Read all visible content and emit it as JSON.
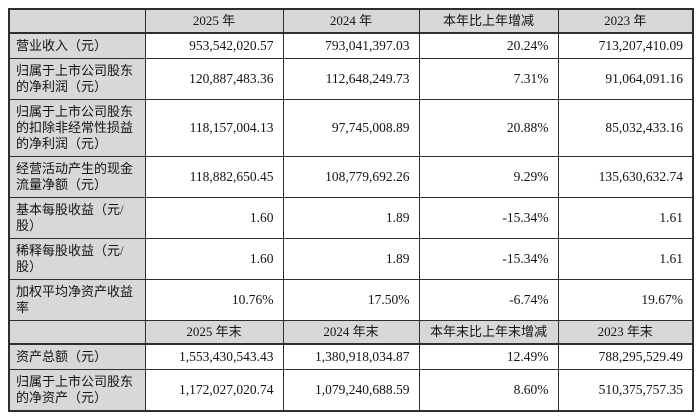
{
  "colors": {
    "header_bg": "#d8d8d8",
    "border": "#2e2e2e",
    "cell_bg": "#ffffff",
    "text": "#141414"
  },
  "table": {
    "sections": [
      {
        "header": {
          "corner": "",
          "cols": [
            "2025 年",
            "2024 年",
            "本年比上年增减",
            "2023 年"
          ]
        },
        "rows": [
          {
            "label": "营业收入（元）",
            "values": [
              "953,542,020.57",
              "793,041,397.03",
              "20.24%",
              "713,207,410.09"
            ]
          },
          {
            "label": "归属于上市公司股东的净利润（元）",
            "values": [
              "120,887,483.36",
              "112,648,249.73",
              "7.31%",
              "91,064,091.16"
            ]
          },
          {
            "label": "归属于上市公司股东的扣除非经常性损益的净利润（元）",
            "values": [
              "118,157,004.13",
              "97,745,008.89",
              "20.88%",
              "85,032,433.16"
            ]
          },
          {
            "label": "经营活动产生的现金流量净额（元）",
            "values": [
              "118,882,650.45",
              "108,779,692.26",
              "9.29%",
              "135,630,632.74"
            ]
          },
          {
            "label": "基本每股收益（元/股）",
            "values": [
              "1.60",
              "1.89",
              "-15.34%",
              "1.61"
            ]
          },
          {
            "label": "稀释每股收益（元/股）",
            "values": [
              "1.60",
              "1.89",
              "-15.34%",
              "1.61"
            ]
          },
          {
            "label": "加权平均净资产收益率",
            "values": [
              "10.76%",
              "17.50%",
              "-6.74%",
              "19.67%"
            ]
          }
        ]
      },
      {
        "header": {
          "corner": "",
          "cols": [
            "2025 年末",
            "2024 年末",
            "本年末比上年末增减",
            "2023 年末"
          ]
        },
        "rows": [
          {
            "label": "资产总额（元）",
            "values": [
              "1,553,430,543.43",
              "1,380,918,034.87",
              "12.49%",
              "788,295,529.49"
            ]
          },
          {
            "label": "归属于上市公司股东的净资产（元）",
            "values": [
              "1,172,027,020.74",
              "1,079,240,688.59",
              "8.60%",
              "510,375,757.35"
            ]
          }
        ]
      }
    ]
  }
}
